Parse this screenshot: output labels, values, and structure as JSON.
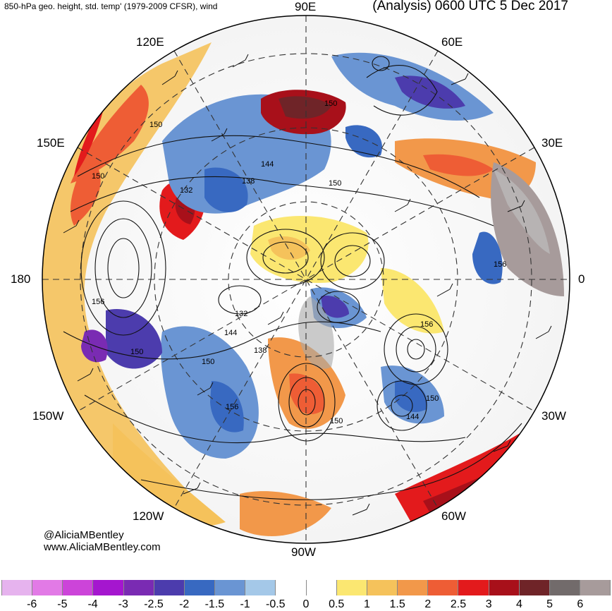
{
  "header": {
    "title": "850-hPa geo. height, std. temp' (1979-2009 CFSR), wind",
    "analysis_time": "(Analysis) 0600 UTC 5 Dec 2017"
  },
  "map": {
    "projection": "polar stereographic (north pole)",
    "longitude_labels": {
      "lon_90e": "90E",
      "lon_60e": "60E",
      "lon_30e": "30E",
      "lon_0": "0",
      "lon_30w": "30W",
      "lon_60w": "60W",
      "lon_90w": "90W",
      "lon_120w": "120W",
      "lon_150w": "150W",
      "lon_180": "180",
      "lon_150e": "150E",
      "lon_120e": "120E"
    },
    "contour_labels": [
      "150",
      "150",
      "144",
      "138",
      "132",
      "150",
      "156",
      "132",
      "144",
      "138",
      "150",
      "156",
      "150",
      "144",
      "150",
      "156",
      "150",
      "156",
      "150"
    ]
  },
  "credit": {
    "handle": "@AliciaMBentley",
    "website": "www.AliciaMBentley.com"
  },
  "colorbar": {
    "colors": [
      "#e6b3ee",
      "#e27ae6",
      "#cc44d9",
      "#a516cf",
      "#7a2bb3",
      "#4c3cad",
      "#3869c1",
      "#6a95d3",
      "#a4c8e8",
      "#ffffff",
      "#ffffff",
      "#fbe771",
      "#f5c25b",
      "#f2984a",
      "#ee5d35",
      "#e31a1c",
      "#a8101a",
      "#6f2428",
      "#726b6b",
      "#a79b9b"
    ],
    "tick_labels": [
      "-6",
      "-5",
      "-4",
      "-3",
      "-2.5",
      "-2",
      "-1.5",
      "-1",
      "-0.5",
      "0",
      "0.5",
      "1",
      "1.5",
      "2",
      "2.5",
      "3",
      "4",
      "5",
      "6"
    ]
  }
}
